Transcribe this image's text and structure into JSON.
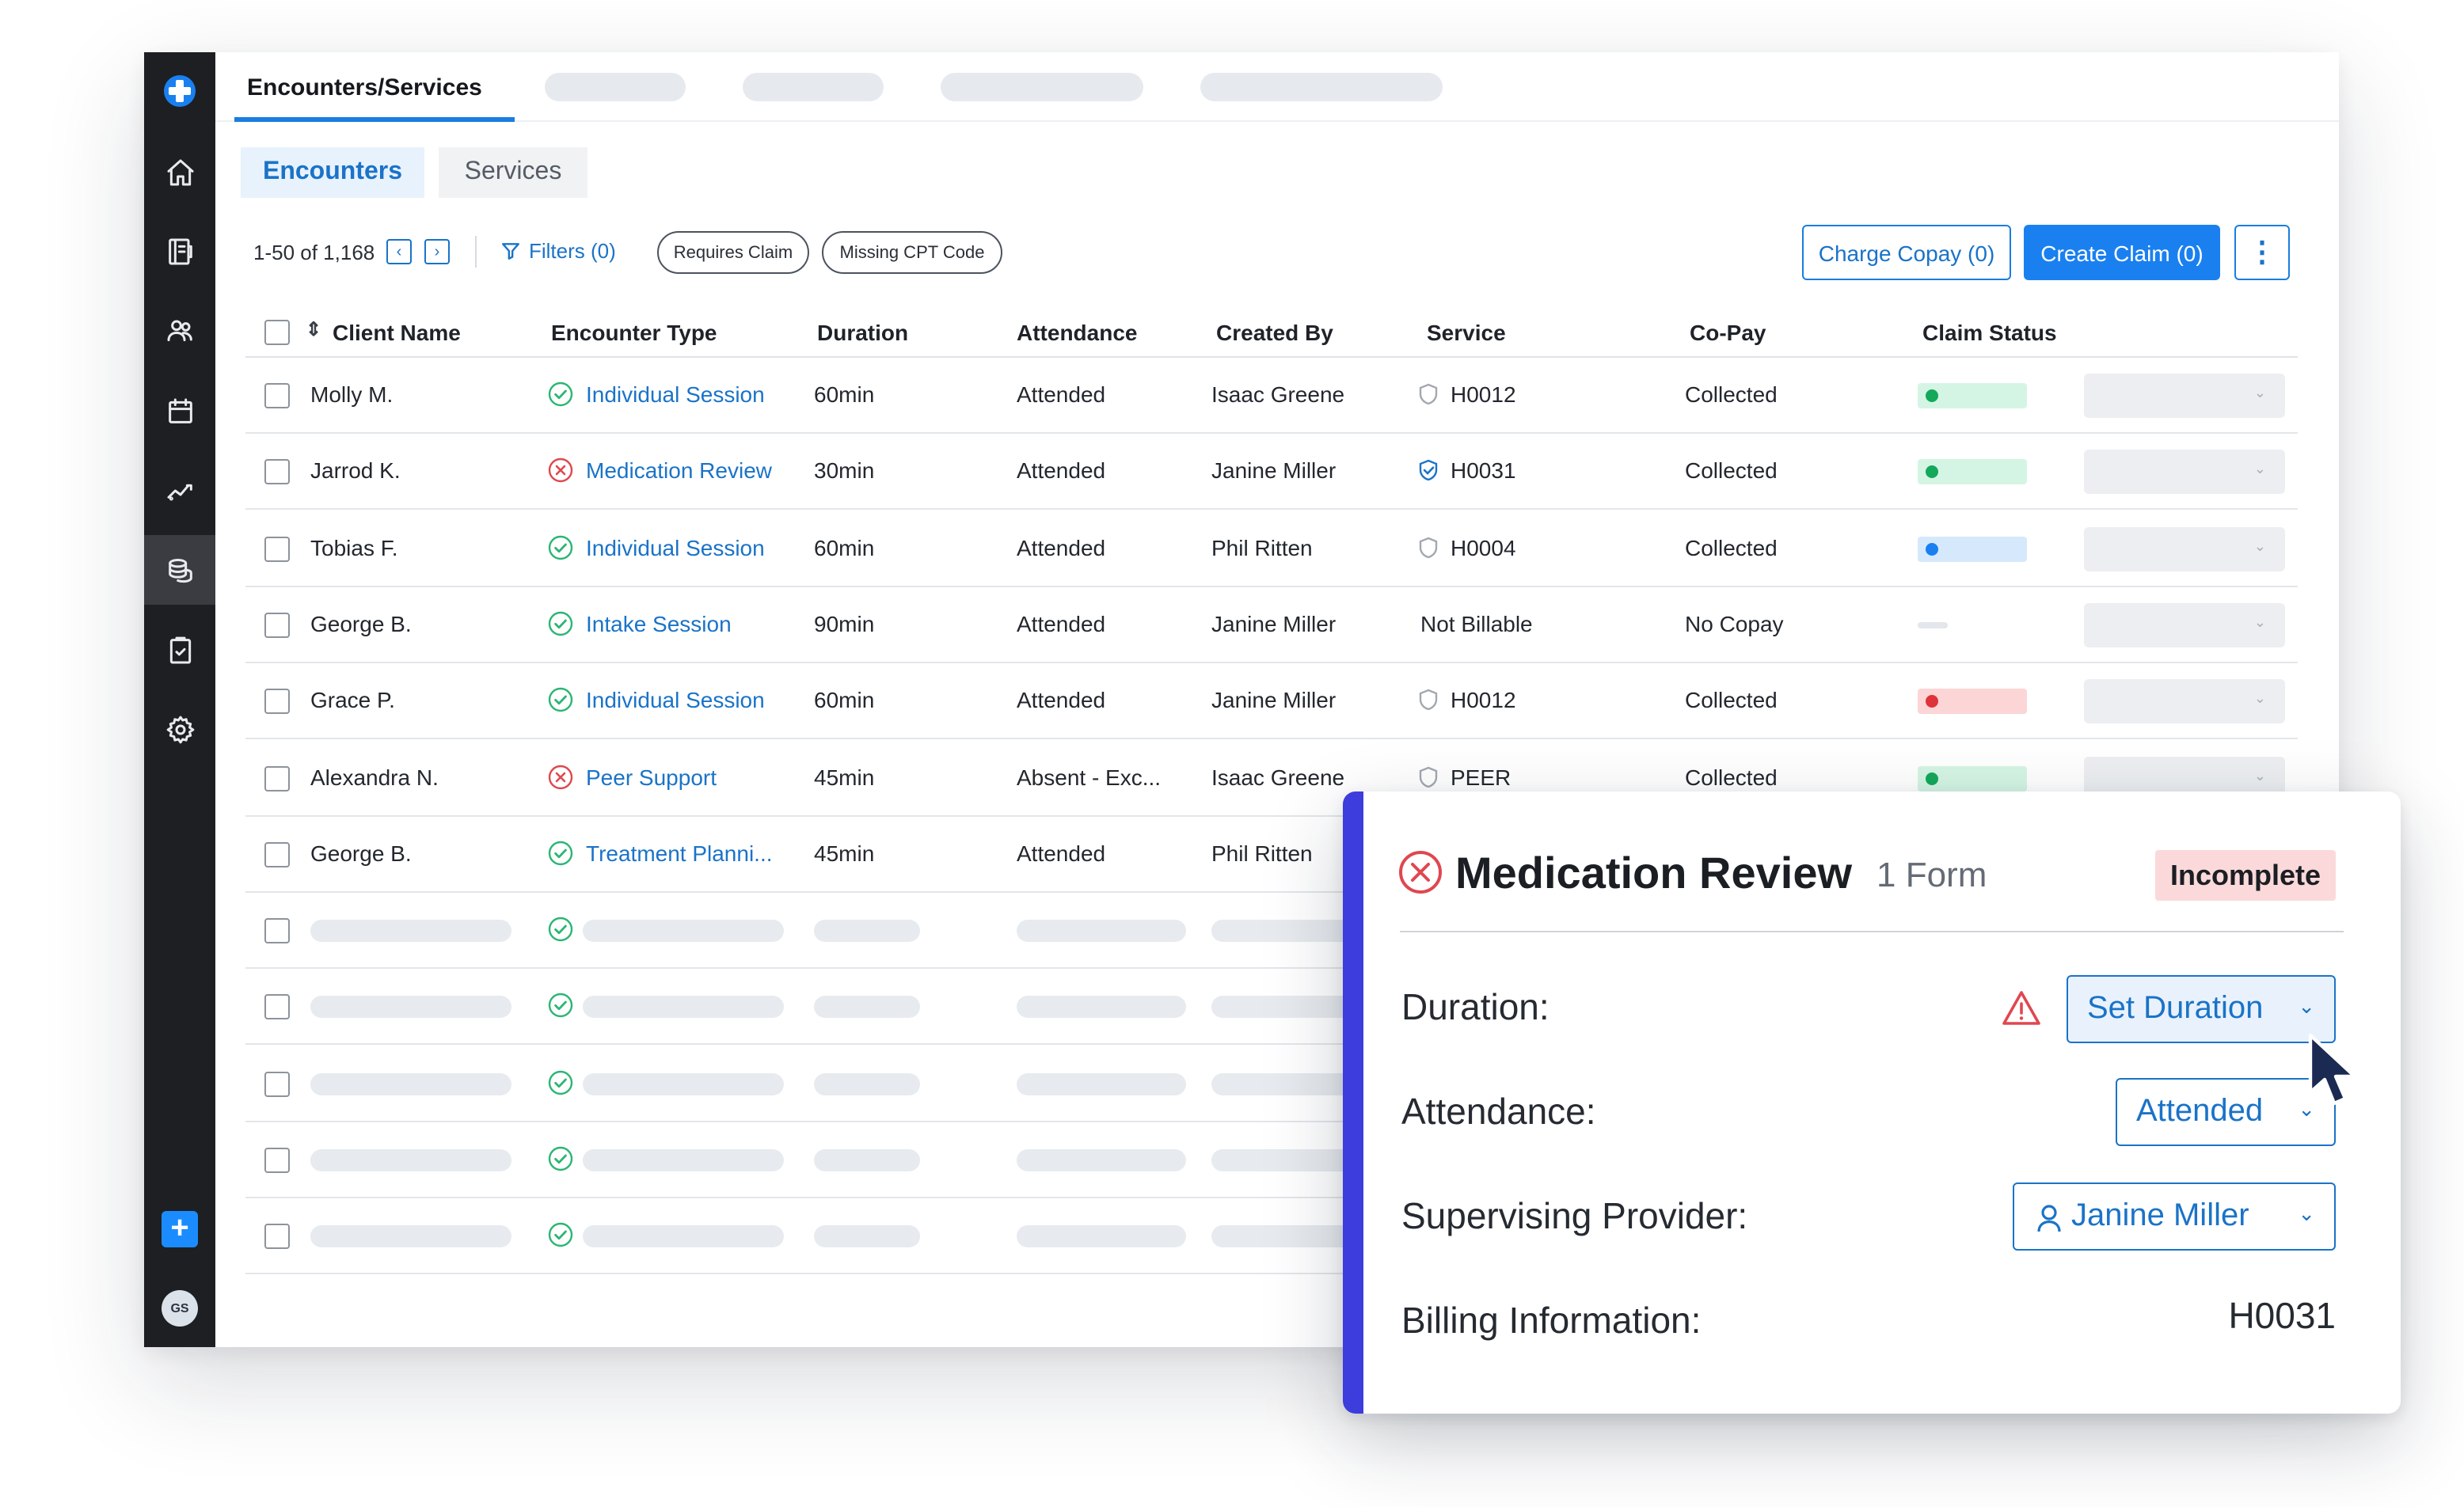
{
  "app": {
    "top_tab": "Encounters/Services",
    "sub_tabs": [
      "Encounters",
      "Services"
    ],
    "avatar_initials": "GS",
    "accent_color": "#1a80f0"
  },
  "toolbar": {
    "count": "1-50 of 1,168",
    "filters": "Filters (0)",
    "chips": [
      "Requires Claim",
      "Missing CPT Code"
    ],
    "charge_copay": "Charge Copay (0)",
    "create_claim": "Create Claim (0)"
  },
  "table": {
    "columns": [
      "Client Name",
      "Encounter Type",
      "Duration",
      "Attendance",
      "Created By",
      "Service",
      "Co-Pay",
      "Claim Status"
    ],
    "rows": [
      {
        "client": "Molly M.",
        "status": "ok",
        "type": "Individual Session",
        "duration": "60min",
        "attendance": "Attended",
        "created_by": "Isaac Greene",
        "service_icon": "gray",
        "service": "H0012",
        "copay": "Collected",
        "claim": "green"
      },
      {
        "client": "Jarrod K.",
        "status": "error",
        "type": "Medication Review",
        "duration": "30min",
        "attendance": "Attended",
        "created_by": "Janine Miller",
        "service_icon": "blue",
        "service": "H0031",
        "copay": "Collected",
        "claim": "green"
      },
      {
        "client": "Tobias F.",
        "status": "ok",
        "type": "Individual Session",
        "duration": "60min",
        "attendance": "Attended",
        "created_by": "Phil Ritten",
        "service_icon": "gray",
        "service": "H0004",
        "copay": "Collected",
        "claim": "blue"
      },
      {
        "client": "George B.",
        "status": "ok",
        "type": "Intake Session",
        "duration": "90min",
        "attendance": "Attended",
        "created_by": "Janine Miller",
        "service_icon": "none",
        "service": "Not Billable",
        "copay": "No Copay",
        "claim": "none"
      },
      {
        "client": "Grace P.",
        "status": "ok",
        "type": "Individual Session",
        "duration": "60min",
        "attendance": "Attended",
        "created_by": "Janine Miller",
        "service_icon": "gray",
        "service": "H0012",
        "copay": "Collected",
        "claim": "red"
      },
      {
        "client": "Alexandra N.",
        "status": "error",
        "type": "Peer Support",
        "duration": "45min",
        "attendance": "Absent - Exc...",
        "created_by": "Isaac Greene",
        "service_icon": "gray",
        "service": "PEER",
        "copay": "Collected",
        "claim": "green"
      },
      {
        "client": "George B.",
        "status": "ok",
        "type": "Treatment Planni...",
        "duration": "45min",
        "attendance": "Attended",
        "created_by": "Phil Ritten",
        "service_icon": "none",
        "service": "",
        "copay": "",
        "claim": "hidden"
      }
    ],
    "placeholder_rows": 5
  },
  "popup": {
    "title": "Medication Review",
    "forms": "1 Form",
    "badge": "Incomplete",
    "duration_label": "Duration:",
    "duration_value": "Set Duration",
    "attendance_label": "Attendance:",
    "attendance_value": "Attended",
    "provider_label": "Supervising Provider:",
    "provider_value": "Janine Miller",
    "billing_label": "Billing Information:",
    "billing_value": "H0031"
  },
  "colors": {
    "claim_green_bg": "#d5f5e4",
    "claim_green_dot": "#14a85a",
    "claim_blue_bg": "#d6e9fc",
    "claim_blue_dot": "#1a80f0",
    "claim_red_bg": "#fcd5d6",
    "claim_red_dot": "#e0323b",
    "ok_icon": "#2bb673",
    "error_icon": "#e0474f",
    "popup_accent": "#3d3cdc"
  },
  "icons": {
    "sidebar": [
      "home-icon",
      "notes-icon",
      "clients-icon",
      "calendar-icon",
      "analytics-icon",
      "billing-icon",
      "tasks-icon",
      "settings-icon"
    ]
  }
}
